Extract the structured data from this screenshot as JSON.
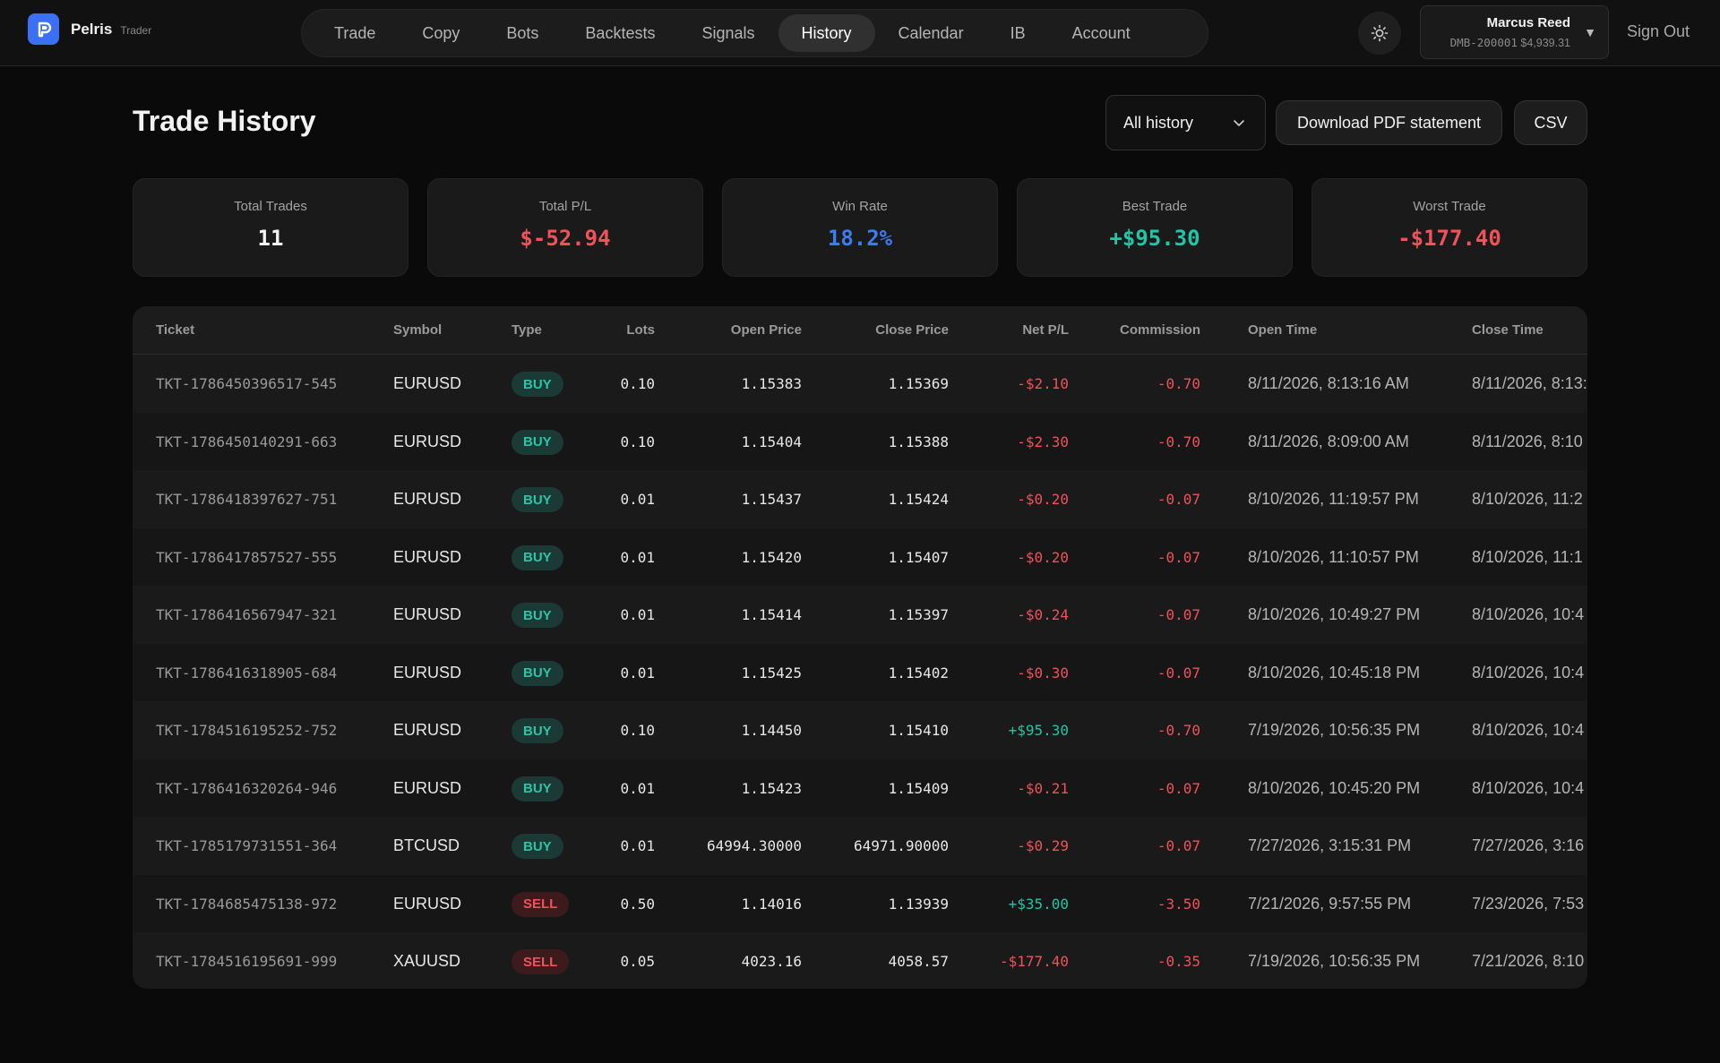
{
  "app": {
    "name": "Pelris",
    "sub": "Trader"
  },
  "nav": [
    {
      "label": "Trade",
      "active": false
    },
    {
      "label": "Copy",
      "active": false
    },
    {
      "label": "Bots",
      "active": false
    },
    {
      "label": "Backtests",
      "active": false
    },
    {
      "label": "Signals",
      "active": false
    },
    {
      "label": "History",
      "active": true
    },
    {
      "label": "Calendar",
      "active": false
    },
    {
      "label": "IB",
      "active": false
    },
    {
      "label": "Account",
      "active": false
    }
  ],
  "account": {
    "name": "Marcus Reed",
    "id": "DMB-200001",
    "balance": "$4,939.31",
    "sign_out": "Sign Out"
  },
  "page": {
    "title": "Trade History",
    "filter": "All history",
    "pdf_label": "Download PDF statement",
    "csv_label": "CSV"
  },
  "stats": [
    {
      "label": "Total Trades",
      "value": "11",
      "tone": "neutral"
    },
    {
      "label": "Total P/L",
      "value": "$-52.94",
      "tone": "neg"
    },
    {
      "label": "Win Rate",
      "value": "18.2%",
      "tone": "blue"
    },
    {
      "label": "Best Trade",
      "value": "+$95.30",
      "tone": "pos"
    },
    {
      "label": "Worst Trade",
      "value": "-$177.40",
      "tone": "neg"
    }
  ],
  "colors": {
    "neutral": "#f2f2f2",
    "neg": "#f0525a",
    "pos": "#22c5a7",
    "blue": "#3d7bf0"
  },
  "table": {
    "columns": [
      "Ticket",
      "Symbol",
      "Type",
      "Lots",
      "Open Price",
      "Close Price",
      "Net P/L",
      "Commission",
      "Open Time",
      "Close Time"
    ],
    "rows": [
      {
        "ticket": "TKT-1786450396517-545",
        "symbol": "EURUSD",
        "type": "BUY",
        "lots": "0.10",
        "open_price": "1.15383",
        "close_price": "1.15369",
        "net_pl": "-$2.10",
        "commission": "-0.70",
        "open_time": "8/11/2026, 8:13:16 AM",
        "close_time": "8/11/2026, 8:13:"
      },
      {
        "ticket": "TKT-1786450140291-663",
        "symbol": "EURUSD",
        "type": "BUY",
        "lots": "0.10",
        "open_price": "1.15404",
        "close_price": "1.15388",
        "net_pl": "-$2.30",
        "commission": "-0.70",
        "open_time": "8/11/2026, 8:09:00 AM",
        "close_time": "8/11/2026, 8:10"
      },
      {
        "ticket": "TKT-1786418397627-751",
        "symbol": "EURUSD",
        "type": "BUY",
        "lots": "0.01",
        "open_price": "1.15437",
        "close_price": "1.15424",
        "net_pl": "-$0.20",
        "commission": "-0.07",
        "open_time": "8/10/2026, 11:19:57 PM",
        "close_time": "8/10/2026, 11:2"
      },
      {
        "ticket": "TKT-1786417857527-555",
        "symbol": "EURUSD",
        "type": "BUY",
        "lots": "0.01",
        "open_price": "1.15420",
        "close_price": "1.15407",
        "net_pl": "-$0.20",
        "commission": "-0.07",
        "open_time": "8/10/2026, 11:10:57 PM",
        "close_time": "8/10/2026, 11:1"
      },
      {
        "ticket": "TKT-1786416567947-321",
        "symbol": "EURUSD",
        "type": "BUY",
        "lots": "0.01",
        "open_price": "1.15414",
        "close_price": "1.15397",
        "net_pl": "-$0.24",
        "commission": "-0.07",
        "open_time": "8/10/2026, 10:49:27 PM",
        "close_time": "8/10/2026, 10:4"
      },
      {
        "ticket": "TKT-1786416318905-684",
        "symbol": "EURUSD",
        "type": "BUY",
        "lots": "0.01",
        "open_price": "1.15425",
        "close_price": "1.15402",
        "net_pl": "-$0.30",
        "commission": "-0.07",
        "open_time": "8/10/2026, 10:45:18 PM",
        "close_time": "8/10/2026, 10:4"
      },
      {
        "ticket": "TKT-1784516195252-752",
        "symbol": "EURUSD",
        "type": "BUY",
        "lots": "0.10",
        "open_price": "1.14450",
        "close_price": "1.15410",
        "net_pl": "+$95.30",
        "commission": "-0.70",
        "open_time": "7/19/2026, 10:56:35 PM",
        "close_time": "8/10/2026, 10:4"
      },
      {
        "ticket": "TKT-1786416320264-946",
        "symbol": "EURUSD",
        "type": "BUY",
        "lots": "0.01",
        "open_price": "1.15423",
        "close_price": "1.15409",
        "net_pl": "-$0.21",
        "commission": "-0.07",
        "open_time": "8/10/2026, 10:45:20 PM",
        "close_time": "8/10/2026, 10:4"
      },
      {
        "ticket": "TKT-1785179731551-364",
        "symbol": "BTCUSD",
        "type": "BUY",
        "lots": "0.01",
        "open_price": "64994.30000",
        "close_price": "64971.90000",
        "net_pl": "-$0.29",
        "commission": "-0.07",
        "open_time": "7/27/2026, 3:15:31 PM",
        "close_time": "7/27/2026, 3:16"
      },
      {
        "ticket": "TKT-1784685475138-972",
        "symbol": "EURUSD",
        "type": "SELL",
        "lots": "0.50",
        "open_price": "1.14016",
        "close_price": "1.13939",
        "net_pl": "+$35.00",
        "commission": "-3.50",
        "open_time": "7/21/2026, 9:57:55 PM",
        "close_time": "7/23/2026, 7:53"
      },
      {
        "ticket": "TKT-1784516195691-999",
        "symbol": "XAUUSD",
        "type": "SELL",
        "lots": "0.05",
        "open_price": "4023.16",
        "close_price": "4058.57",
        "net_pl": "-$177.40",
        "commission": "-0.35",
        "open_time": "7/19/2026, 10:56:35 PM",
        "close_time": "7/21/2026, 8:10"
      }
    ]
  }
}
